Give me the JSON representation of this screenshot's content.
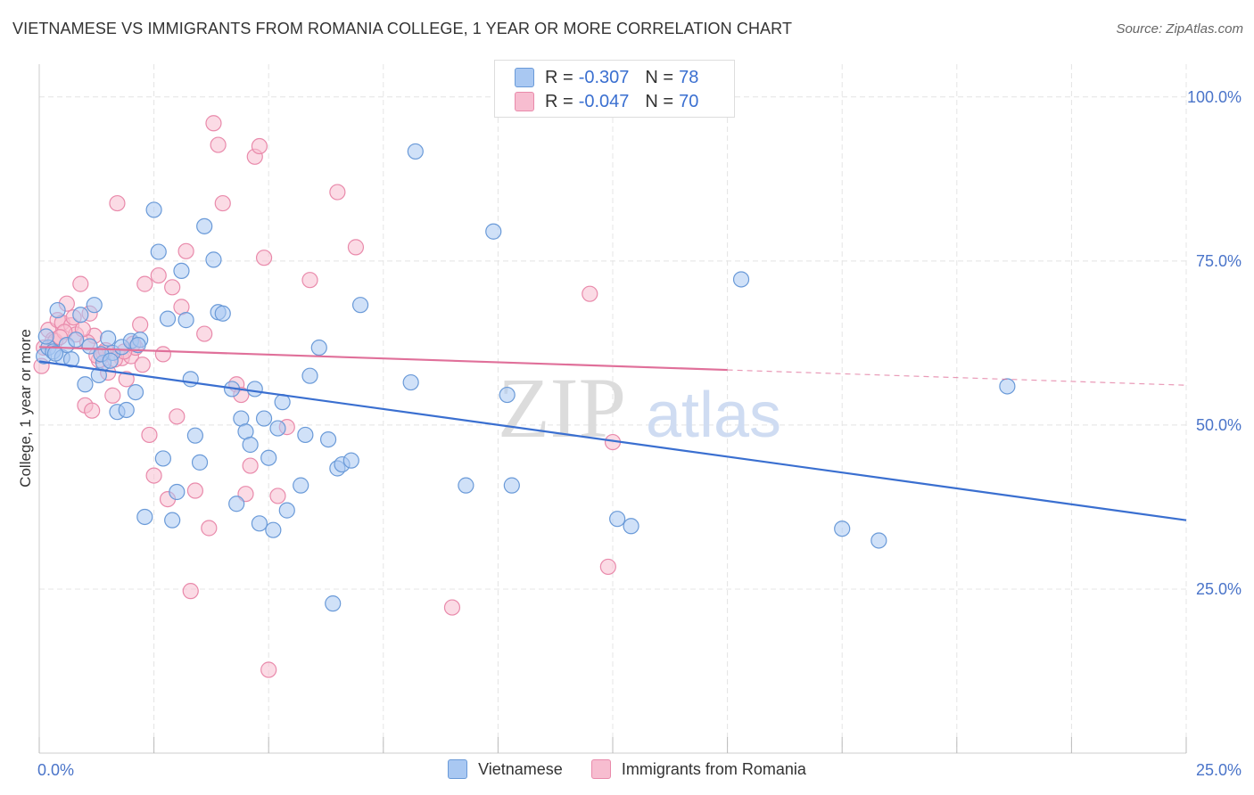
{
  "chart_data": {
    "type": "scatter",
    "title": "VIETNAMESE VS IMMIGRANTS FROM ROMANIA COLLEGE, 1 YEAR OR MORE CORRELATION CHART",
    "source": "Source: ZipAtlas.com",
    "xlabel": "",
    "ylabel": "College, 1 year or more",
    "xlim": [
      0,
      25
    ],
    "ylim": [
      0,
      105
    ],
    "x_tick_labels": [
      {
        "value": 0,
        "label": "0.0%"
      },
      {
        "value": 25,
        "label": "25.0%"
      }
    ],
    "y_tick_labels": [
      {
        "value": 100,
        "label": "100.0%"
      },
      {
        "value": 75,
        "label": "75.0%"
      },
      {
        "value": 50,
        "label": "50.0%"
      },
      {
        "value": 25,
        "label": "25.0%"
      }
    ],
    "watermark": {
      "zip": "ZIP",
      "atlas": "atlas"
    },
    "colors": {
      "vietnamese_fill": "#a9c8f2",
      "vietnamese_stroke": "#6a9ad8",
      "vietnamese_line": "#3a6fd0",
      "romania_fill": "#f7bdd0",
      "romania_stroke": "#e98aab",
      "romania_line": "#e0709a",
      "grid": "#e4e4e4",
      "tick_text": "#4a74c9"
    },
    "stats": [
      {
        "r_label": "R =",
        "r_value": "-0.307",
        "n_label": "N =",
        "n_value": "78"
      },
      {
        "r_label": "R =",
        "r_value": "-0.047",
        "n_label": "N =",
        "n_value": "70"
      }
    ],
    "series": [
      {
        "name": "Vietnamese",
        "trend": {
          "x_start": 0,
          "y_start": 59.7,
          "x_end": 25,
          "y_end": 35.5,
          "dash_to": 25
        },
        "points": [
          {
            "x": 0.1,
            "y": 60.5
          },
          {
            "x": 0.2,
            "y": 61.8
          },
          {
            "x": 0.3,
            "y": 61.2
          },
          {
            "x": 0.4,
            "y": 67.5
          },
          {
            "x": 0.5,
            "y": 60.3
          },
          {
            "x": 0.6,
            "y": 62.2
          },
          {
            "x": 0.7,
            "y": 60.0
          },
          {
            "x": 0.8,
            "y": 63.0
          },
          {
            "x": 0.9,
            "y": 66.8
          },
          {
            "x": 1.0,
            "y": 56.2
          },
          {
            "x": 1.1,
            "y": 62.0
          },
          {
            "x": 1.2,
            "y": 68.3
          },
          {
            "x": 1.3,
            "y": 57.6
          },
          {
            "x": 1.4,
            "y": 59.5
          },
          {
            "x": 1.5,
            "y": 63.2
          },
          {
            "x": 1.6,
            "y": 61.0
          },
          {
            "x": 1.7,
            "y": 52.0
          },
          {
            "x": 1.8,
            "y": 61.9
          },
          {
            "x": 1.9,
            "y": 52.3
          },
          {
            "x": 2.0,
            "y": 62.8
          },
          {
            "x": 2.1,
            "y": 55.0
          },
          {
            "x": 2.2,
            "y": 63.0
          },
          {
            "x": 2.3,
            "y": 36.0
          },
          {
            "x": 2.5,
            "y": 82.8
          },
          {
            "x": 2.6,
            "y": 76.4
          },
          {
            "x": 2.7,
            "y": 44.9
          },
          {
            "x": 2.8,
            "y": 66.2
          },
          {
            "x": 2.9,
            "y": 35.5
          },
          {
            "x": 3.0,
            "y": 39.8
          },
          {
            "x": 3.1,
            "y": 73.5
          },
          {
            "x": 3.2,
            "y": 66.0
          },
          {
            "x": 3.3,
            "y": 57.0
          },
          {
            "x": 3.4,
            "y": 48.4
          },
          {
            "x": 3.5,
            "y": 44.3
          },
          {
            "x": 3.6,
            "y": 80.3
          },
          {
            "x": 3.8,
            "y": 75.2
          },
          {
            "x": 3.9,
            "y": 67.2
          },
          {
            "x": 4.0,
            "y": 67.0
          },
          {
            "x": 4.2,
            "y": 55.5
          },
          {
            "x": 4.3,
            "y": 38.0
          },
          {
            "x": 4.4,
            "y": 51.0
          },
          {
            "x": 4.5,
            "y": 49.0
          },
          {
            "x": 4.6,
            "y": 47.0
          },
          {
            "x": 4.7,
            "y": 55.5
          },
          {
            "x": 4.8,
            "y": 35.0
          },
          {
            "x": 4.9,
            "y": 51.0
          },
          {
            "x": 5.0,
            "y": 45.0
          },
          {
            "x": 5.1,
            "y": 34.0
          },
          {
            "x": 5.2,
            "y": 49.5
          },
          {
            "x": 5.3,
            "y": 53.5
          },
          {
            "x": 5.4,
            "y": 37.0
          },
          {
            "x": 5.7,
            "y": 40.8
          },
          {
            "x": 5.8,
            "y": 48.5
          },
          {
            "x": 5.9,
            "y": 57.5
          },
          {
            "x": 6.1,
            "y": 61.8
          },
          {
            "x": 6.3,
            "y": 47.8
          },
          {
            "x": 6.5,
            "y": 43.4
          },
          {
            "x": 6.6,
            "y": 44.0
          },
          {
            "x": 6.8,
            "y": 44.6
          },
          {
            "x": 6.4,
            "y": 22.8
          },
          {
            "x": 7.0,
            "y": 68.3
          },
          {
            "x": 8.1,
            "y": 56.5
          },
          {
            "x": 8.2,
            "y": 91.7
          },
          {
            "x": 9.3,
            "y": 40.8
          },
          {
            "x": 9.9,
            "y": 79.5
          },
          {
            "x": 10.3,
            "y": 40.8
          },
          {
            "x": 10.2,
            "y": 54.6
          },
          {
            "x": 12.6,
            "y": 35.7
          },
          {
            "x": 12.9,
            "y": 34.6
          },
          {
            "x": 15.3,
            "y": 72.2
          },
          {
            "x": 17.5,
            "y": 34.2
          },
          {
            "x": 18.3,
            "y": 32.4
          },
          {
            "x": 21.1,
            "y": 55.9
          },
          {
            "x": 0.15,
            "y": 63.5
          },
          {
            "x": 1.35,
            "y": 60.8
          },
          {
            "x": 2.15,
            "y": 62.2
          },
          {
            "x": 0.35,
            "y": 60.9
          },
          {
            "x": 1.55,
            "y": 59.8
          }
        ]
      },
      {
        "name": "Immigrants from Romania",
        "trend": {
          "x_start": 0,
          "y_start": 61.9,
          "x_end": 15.0,
          "y_end": 58.4,
          "dash_to": 25
        },
        "points": [
          {
            "x": 0.05,
            "y": 59.0
          },
          {
            "x": 0.2,
            "y": 64.5
          },
          {
            "x": 0.3,
            "y": 63.0
          },
          {
            "x": 0.4,
            "y": 66.0
          },
          {
            "x": 0.5,
            "y": 65.6
          },
          {
            "x": 0.6,
            "y": 68.5
          },
          {
            "x": 0.7,
            "y": 65.2
          },
          {
            "x": 0.8,
            "y": 63.8
          },
          {
            "x": 0.9,
            "y": 71.5
          },
          {
            "x": 1.0,
            "y": 53.0
          },
          {
            "x": 1.1,
            "y": 67.0
          },
          {
            "x": 1.15,
            "y": 52.2
          },
          {
            "x": 1.2,
            "y": 63.6
          },
          {
            "x": 1.3,
            "y": 59.9
          },
          {
            "x": 1.4,
            "y": 61.0
          },
          {
            "x": 1.5,
            "y": 58.0
          },
          {
            "x": 1.6,
            "y": 54.5
          },
          {
            "x": 1.7,
            "y": 83.8
          },
          {
            "x": 1.8,
            "y": 60.2
          },
          {
            "x": 1.9,
            "y": 57.0
          },
          {
            "x": 2.0,
            "y": 60.5
          },
          {
            "x": 2.1,
            "y": 61.8
          },
          {
            "x": 2.2,
            "y": 65.3
          },
          {
            "x": 2.3,
            "y": 71.5
          },
          {
            "x": 2.4,
            "y": 48.5
          },
          {
            "x": 2.5,
            "y": 42.3
          },
          {
            "x": 2.6,
            "y": 72.8
          },
          {
            "x": 2.7,
            "y": 60.8
          },
          {
            "x": 2.8,
            "y": 38.7
          },
          {
            "x": 2.9,
            "y": 71.0
          },
          {
            "x": 3.0,
            "y": 51.3
          },
          {
            "x": 3.1,
            "y": 68.0
          },
          {
            "x": 3.2,
            "y": 76.5
          },
          {
            "x": 3.3,
            "y": 24.7
          },
          {
            "x": 3.4,
            "y": 40.0
          },
          {
            "x": 3.6,
            "y": 63.9
          },
          {
            "x": 3.7,
            "y": 34.3
          },
          {
            "x": 3.8,
            "y": 96.0
          },
          {
            "x": 3.9,
            "y": 92.7
          },
          {
            "x": 4.0,
            "y": 83.8
          },
          {
            "x": 4.3,
            "y": 56.2
          },
          {
            "x": 4.4,
            "y": 54.6
          },
          {
            "x": 4.5,
            "y": 39.5
          },
          {
            "x": 4.6,
            "y": 43.8
          },
          {
            "x": 4.7,
            "y": 90.9
          },
          {
            "x": 4.8,
            "y": 92.5
          },
          {
            "x": 4.9,
            "y": 75.5
          },
          {
            "x": 5.0,
            "y": 12.7
          },
          {
            "x": 5.2,
            "y": 39.2
          },
          {
            "x": 5.4,
            "y": 49.7
          },
          {
            "x": 5.9,
            "y": 72.1
          },
          {
            "x": 6.5,
            "y": 85.5
          },
          {
            "x": 6.9,
            "y": 77.1
          },
          {
            "x": 9.0,
            "y": 22.2
          },
          {
            "x": 12.0,
            "y": 70.0
          },
          {
            "x": 12.4,
            "y": 28.4
          },
          {
            "x": 12.5,
            "y": 47.4
          },
          {
            "x": 0.1,
            "y": 61.8
          },
          {
            "x": 0.35,
            "y": 62.8
          },
          {
            "x": 0.55,
            "y": 64.2
          },
          {
            "x": 0.75,
            "y": 66.4
          },
          {
            "x": 1.05,
            "y": 62.6
          },
          {
            "x": 1.25,
            "y": 60.6
          },
          {
            "x": 1.45,
            "y": 61.4
          },
          {
            "x": 1.65,
            "y": 60.0
          },
          {
            "x": 1.85,
            "y": 61.2
          },
          {
            "x": 2.05,
            "y": 62.4
          },
          {
            "x": 2.25,
            "y": 59.2
          },
          {
            "x": 0.45,
            "y": 63.4
          },
          {
            "x": 0.95,
            "y": 64.6
          }
        ]
      }
    ]
  }
}
